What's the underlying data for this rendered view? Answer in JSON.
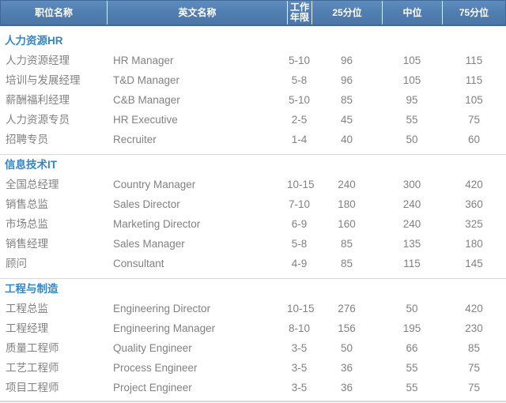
{
  "chart_data": {
    "type": "table",
    "columns": [
      "职位名称",
      "英文名称",
      "工作年限",
      "25分位",
      "中位",
      "75分位"
    ],
    "sections": [
      {
        "title": "人力资源HR",
        "rows": [
          [
            "人力资源经理",
            "HR Manager",
            "5-10",
            "96",
            "105",
            "115"
          ],
          [
            "培训与发展经理",
            "T&D Manager",
            "5-8",
            "96",
            "105",
            "115"
          ],
          [
            "薪酬福利经理",
            "C&B Manager",
            "5-10",
            "85",
            "95",
            "105"
          ],
          [
            "人力资源专员",
            "HR Executive",
            "2-5",
            "45",
            "55",
            "75"
          ],
          [
            "招聘专员",
            "Recruiter",
            "1-4",
            "40",
            "50",
            "60"
          ]
        ]
      },
      {
        "title": "信息技术IT",
        "rows": [
          [
            "全国总经理",
            "Country Manager",
            "10-15",
            "240",
            "300",
            "420"
          ],
          [
            "销售总监",
            "Sales Director",
            "7-10",
            "180",
            "240",
            "360"
          ],
          [
            "市场总监",
            "Marketing Director",
            "6-9",
            "160",
            "240",
            "325"
          ],
          [
            "销售经理",
            "Sales Manager",
            "5-8",
            "85",
            "135",
            "180"
          ],
          [
            "顾问",
            "Consultant",
            "4-9",
            "85",
            "115",
            "145"
          ]
        ]
      },
      {
        "title": "工程与制造",
        "rows": [
          [
            "工程总监",
            "Engineering Director",
            "10-15",
            "276",
            "50",
            "420"
          ],
          [
            "工程经理",
            "Engineering Manager",
            "8-10",
            "156",
            "195",
            "230"
          ],
          [
            "质量工程师",
            "Quality Engineer",
            "3-5",
            "50",
            "66",
            "85"
          ],
          [
            "工艺工程师",
            "Process Engineer",
            "3-5",
            "36",
            "55",
            "75"
          ],
          [
            "项目工程师",
            "Project Engineer",
            "3-5",
            "36",
            "55",
            "75"
          ]
        ]
      }
    ],
    "layout": {
      "grid": "off",
      "header_position": "top",
      "section_divider": "horizontal-line"
    }
  },
  "colors": {
    "header_bg": "#527fb1",
    "header_border": "#40699a",
    "header_text": "#ffffff",
    "section_title_blue": "#3286c8",
    "body_text_gray": "#818181",
    "divider_gray": "#d8d8d8",
    "background": "#ffffff"
  }
}
